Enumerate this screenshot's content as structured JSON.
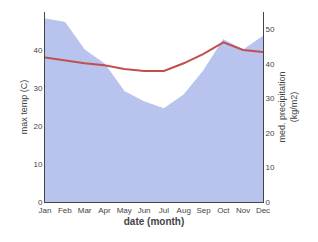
{
  "chart_data": {
    "type": "line",
    "categories": [
      "Jan",
      "Feb",
      "Mar",
      "Apr",
      "May",
      "Jun",
      "Jul",
      "Aug",
      "Sep",
      "Oct",
      "Nov",
      "Dec"
    ],
    "xlabel": "date (month)",
    "ylabel": "max temp (C)",
    "y2label": "med. precipitation\n(kg/m2)",
    "series": [
      {
        "type": "area",
        "axis": "y2",
        "color": "#b8c4ee",
        "values": [
          53,
          52,
          44,
          40,
          32,
          29,
          27,
          31,
          38,
          47,
          44,
          48
        ]
      },
      {
        "type": "line",
        "color": "#c0504d",
        "values": [
          38.0,
          37.2,
          36.5,
          36.0,
          35.0,
          34.5,
          34.5,
          36.5,
          39.0,
          42.0,
          40.0,
          39.5
        ]
      }
    ],
    "ylim": [
      0,
      50
    ],
    "yticks": [
      0,
      10,
      20,
      30,
      40
    ],
    "y2lim": [
      0,
      55
    ],
    "y2ticks": [
      0,
      10,
      20,
      30,
      40,
      50
    ],
    "grid": false
  }
}
